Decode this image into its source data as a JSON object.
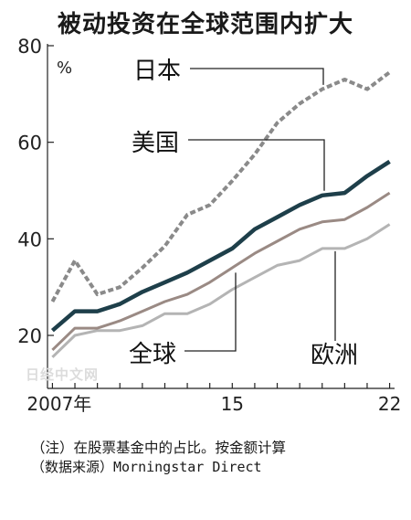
{
  "chart_data": {
    "type": "line",
    "title": "被动投资在全球范围内扩大",
    "ylabel": "%",
    "x": [
      2007,
      2008,
      2009,
      2010,
      2011,
      2012,
      2013,
      2014,
      2015,
      2016,
      2017,
      2018,
      2019,
      2020,
      2021,
      2022
    ],
    "x_tick_labels": [
      {
        "x": 2007,
        "label": "2007年"
      },
      {
        "x": 2015,
        "label": "15"
      },
      {
        "x": 2022,
        "label": "22"
      }
    ],
    "ylim": [
      14,
      80
    ],
    "y_ticks": [
      20,
      40,
      60,
      80
    ],
    "series": [
      {
        "name": "日本",
        "color": "#8a8a8a",
        "style": "dotted",
        "values": [
          27,
          35.5,
          28.5,
          30,
          34,
          38.5,
          45,
          47,
          52,
          57.5,
          64,
          68,
          71,
          73,
          71,
          74.5
        ]
      },
      {
        "name": "美国",
        "color": "#1e3f4a",
        "style": "solid",
        "values": [
          21,
          25,
          25,
          26.5,
          29,
          31,
          33,
          35.5,
          38,
          42,
          44.5,
          47,
          49,
          49.5,
          53,
          56
        ]
      },
      {
        "name": "",
        "color": "#9a8a84",
        "style": "solid",
        "values": [
          17,
          21.5,
          21.5,
          23,
          25,
          27,
          28.5,
          31,
          34,
          37,
          39.5,
          42,
          43.5,
          44,
          46.5,
          49.5
        ]
      },
      {
        "name": "欧洲",
        "color": "#b4b4b4",
        "style": "solid",
        "values": [
          15.5,
          20,
          21,
          21,
          22,
          24.5,
          24.5,
          26.5,
          29.5,
          32,
          34.5,
          35.5,
          38,
          38,
          40,
          43
        ]
      }
    ],
    "annotations": [
      "日本",
      "美国",
      "全球",
      "欧洲"
    ],
    "legend": "none",
    "grid": false
  },
  "notes": {
    "line1": "（注）在股票基金中的占比。按金额计算",
    "line2": "（数据来源）Morningstar Direct"
  },
  "watermark": "日经中文网"
}
